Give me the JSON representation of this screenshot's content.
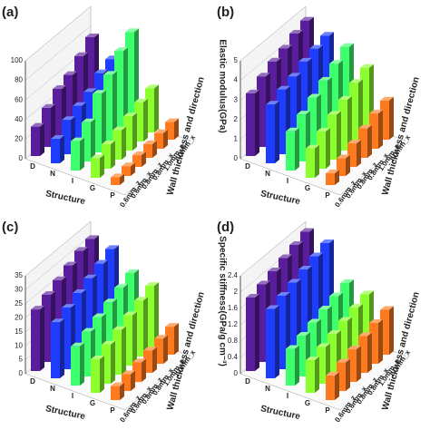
{
  "chart_data": [
    {
      "type": "bar3d",
      "panel_label": "(a)",
      "x_label": "Structure",
      "z_label": "Wall thickness and direction",
      "categories": [
        "D",
        "N",
        "I",
        "G",
        "P"
      ],
      "depth_categories": [
        "0.6mm_z",
        "0.6mm_x",
        "0.8mm_z",
        "0.8mm_x",
        "1.0mm_z",
        "1.0mm_x"
      ],
      "colors": [
        "#5a1e9c",
        "#1f3dff",
        "#3dff6e",
        "#8cff2e",
        "#ff7a1f"
      ],
      "values": [
        [
          30,
          40,
          50,
          55,
          65,
          75
        ],
        [
          25,
          35,
          40,
          45,
          55,
          60
        ],
        [
          30,
          40,
          60,
          70,
          85,
          95
        ],
        [
          20,
          25,
          30,
          35,
          40,
          45
        ],
        [
          8,
          10,
          12,
          14,
          16,
          18
        ]
      ],
      "ylim": [
        0,
        100
      ],
      "yticks": [
        0,
        20,
        40,
        60,
        80,
        100
      ],
      "grid": true
    },
    {
      "type": "bar3d",
      "panel_label": "(b)",
      "x_label": "Structure",
      "z_label": "Wall thickness and direction",
      "y_label": "Elastic modulus(GPa)",
      "categories": [
        "D",
        "N",
        "I",
        "G",
        "P"
      ],
      "depth_categories": [
        "0.6mm_z",
        "0.6mm_x",
        "0.8mm_z",
        "0.8mm_x",
        "1.0mm_z",
        "1.0mm_x"
      ],
      "colors": [
        "#5a1e9c",
        "#1f3dff",
        "#3dff6e",
        "#8cff2e",
        "#ff7a1f"
      ],
      "values": [
        [
          3.2,
          3.6,
          3.9,
          4.1,
          4.4,
          4.6
        ],
        [
          3.0,
          3.3,
          3.5,
          3.8,
          4.0,
          4.2
        ],
        [
          2.0,
          2.4,
          2.8,
          3.2,
          3.6,
          4.0
        ],
        [
          1.5,
          1.9,
          2.3,
          2.6,
          3.0,
          3.3
        ],
        [
          0.6,
          0.9,
          1.2,
          1.5,
          1.8,
          2.0
        ]
      ],
      "ylim": [
        0,
        5
      ],
      "yticks": [
        0,
        1,
        2,
        3,
        4,
        5
      ],
      "grid": true
    },
    {
      "type": "bar3d",
      "panel_label": "(c)",
      "x_label": "Structure",
      "z_label": "Wall thickness and direction",
      "categories": [
        "D",
        "N",
        "I",
        "G",
        "P"
      ],
      "depth_categories": [
        "0.6mm_z",
        "0.6mm_x",
        "0.8mm_z",
        "0.8mm_x",
        "1.0mm_z",
        "1.0mm_x"
      ],
      "colors": [
        "#5a1e9c",
        "#1f3dff",
        "#3dff6e",
        "#8cff2e",
        "#ff7a1f"
      ],
      "values": [
        [
          22,
          24,
          26,
          28,
          30,
          31
        ],
        [
          20,
          22,
          24,
          26,
          28,
          30
        ],
        [
          14,
          16,
          18,
          20,
          22,
          24
        ],
        [
          12,
          14,
          16,
          18,
          20,
          22
        ],
        [
          5,
          6,
          7,
          8,
          9,
          10
        ]
      ],
      "ylim": [
        0,
        35
      ],
      "yticks": [
        0,
        5,
        10,
        15,
        20,
        25,
        30,
        35
      ],
      "grid": true
    },
    {
      "type": "bar3d",
      "panel_label": "(d)",
      "x_label": "Structure",
      "z_label": "Wall thickness and direction",
      "y_label": "Specific stiffness(GPa/g cm⁻³)",
      "categories": [
        "D",
        "N",
        "I",
        "G",
        "P"
      ],
      "depth_categories": [
        "0.6mm_z",
        "0.6mm_x",
        "0.8mm_z",
        "0.8mm_x",
        "1.0mm_z",
        "1.0mm_x"
      ],
      "colors": [
        "#5a1e9c",
        "#1f3dff",
        "#3dff6e",
        "#8cff2e",
        "#ff7a1f"
      ],
      "values": [
        [
          1.8,
          1.9,
          2.0,
          2.1,
          2.2,
          2.3
        ],
        [
          1.7,
          1.8,
          1.9,
          2.0,
          2.1,
          2.2
        ],
        [
          0.9,
          1.0,
          1.1,
          1.2,
          1.3,
          1.4
        ],
        [
          0.8,
          0.9,
          1.0,
          1.1,
          1.2,
          1.3
        ],
        [
          0.6,
          0.7,
          0.8,
          0.9,
          1.0,
          1.1
        ]
      ],
      "ylim": [
        0,
        2.4
      ],
      "yticks": [
        0,
        0.4,
        0.8,
        1.2,
        1.6,
        2.0,
        2.4
      ],
      "grid": true
    }
  ]
}
